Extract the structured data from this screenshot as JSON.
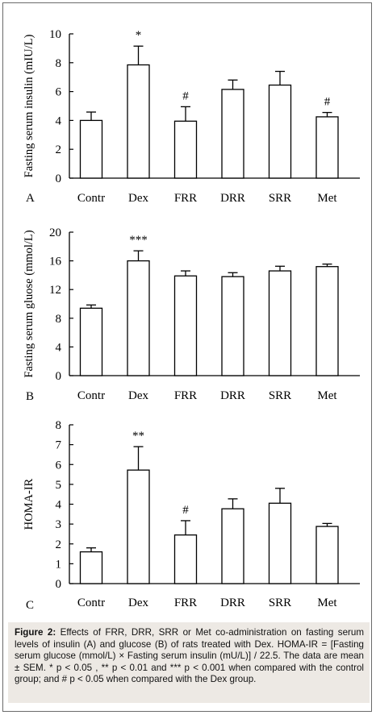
{
  "chart_data": [
    {
      "type": "bar",
      "panel_label": "A",
      "categories": [
        "Contr",
        "Dex",
        "FRR",
        "DRR",
        "SRR",
        "Met"
      ],
      "values": [
        4.0,
        7.85,
        3.95,
        6.15,
        6.45,
        4.25
      ],
      "errors": [
        0.58,
        1.3,
        1.0,
        0.65,
        0.95,
        0.3
      ],
      "significance": [
        "",
        "*",
        "#",
        "",
        "",
        "#"
      ],
      "ylabel": "Fasting serum insulin (mIU/L)",
      "ylim": [
        0,
        10
      ],
      "yticks": [
        0,
        2,
        4,
        6,
        8,
        10
      ],
      "grid": false
    },
    {
      "type": "bar",
      "panel_label": "B",
      "categories": [
        "Contr",
        "Dex",
        "FRR",
        "DRR",
        "SRR",
        "Met"
      ],
      "values": [
        9.4,
        16.0,
        13.9,
        13.8,
        14.6,
        15.2
      ],
      "errors": [
        0.45,
        1.4,
        0.7,
        0.55,
        0.65,
        0.35
      ],
      "significance": [
        "",
        "***",
        "",
        "",
        "",
        ""
      ],
      "ylabel": "Fasting serum gluose (mmol/L)",
      "ylim": [
        0,
        20
      ],
      "yticks": [
        0,
        4,
        8,
        12,
        16,
        20
      ],
      "grid": false
    },
    {
      "type": "bar",
      "panel_label": "C",
      "categories": [
        "Contr",
        "Dex",
        "FRR",
        "DRR",
        "SRR",
        "Met"
      ],
      "values": [
        1.6,
        5.72,
        2.45,
        3.77,
        4.05,
        2.88
      ],
      "errors": [
        0.2,
        1.18,
        0.72,
        0.5,
        0.75,
        0.15
      ],
      "significance": [
        "",
        "**",
        "#",
        "",
        "",
        ""
      ],
      "ylabel": "HOMA-IR",
      "ylim": [
        0,
        8
      ],
      "yticks": [
        0,
        1,
        2,
        3,
        4,
        5,
        6,
        7,
        8
      ],
      "grid": false
    }
  ],
  "caption": {
    "label": "Figure 2:",
    "text": " Effects of FRR, DRR, SRR or Met co-administration on fasting serum levels of insulin (A) and glucose (B) of rats treated with Dex. HOMA-IR = [Fasting serum glucose (mmol/L) × Fasting serum insulin (mU/L)] / 22.5. The data are mean ± SEM. * p < 0.05 , ** p < 0.01 and *** p < 0.001 when compared with the control group; and # p < 0.05 when compared with the Dex group."
  }
}
